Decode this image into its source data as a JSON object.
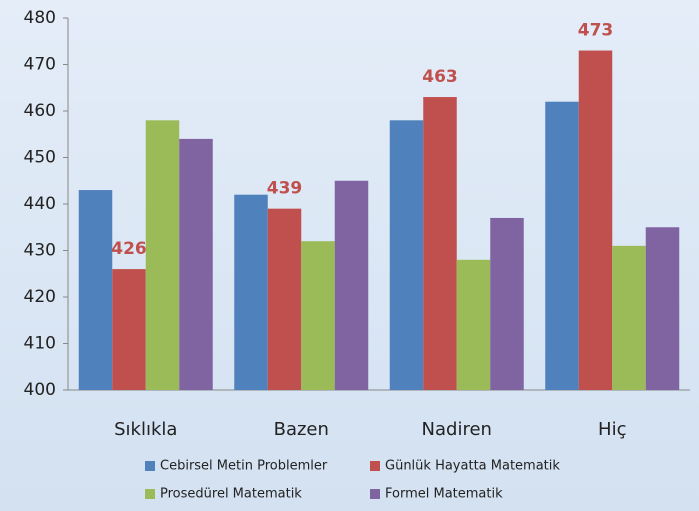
{
  "chart_data": {
    "type": "bar",
    "categories": [
      "Sıklıkla",
      "Bazen",
      "Nadiren",
      "Hiç"
    ],
    "series": [
      {
        "name": "Cebirsel Metin Problemler",
        "color": "#4f81bd",
        "values": [
          443,
          442,
          458,
          462
        ]
      },
      {
        "name": "Günlük Hayatta Matematik",
        "color": "#c0504d",
        "values": [
          426,
          439,
          463,
          473
        ],
        "data_labels": true
      },
      {
        "name": "Prosedürel Matematik",
        "color": "#9bbb59",
        "values": [
          458,
          432,
          428,
          431
        ]
      },
      {
        "name": "Formel Matematik",
        "color": "#8064a2",
        "values": [
          454,
          445,
          437,
          435
        ]
      }
    ],
    "ylim": [
      400,
      480
    ],
    "yticks": [
      400,
      410,
      420,
      430,
      440,
      450,
      460,
      470,
      480
    ],
    "grid": false,
    "legend": "bottom"
  }
}
